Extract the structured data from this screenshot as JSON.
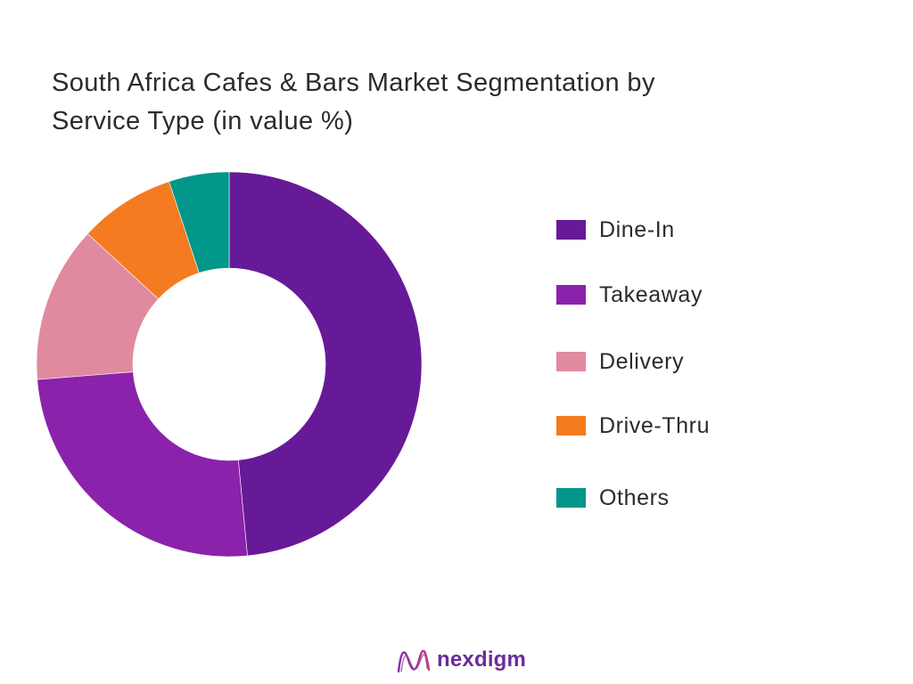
{
  "title_lines": [
    "South Africa Cafes & Bars Market Segmentation by",
    "Service Type (in value %)"
  ],
  "chart_data": {
    "type": "pie",
    "subtype": "donut",
    "title": "South Africa Cafes & Bars Market Segmentation by Service Type (in value %)",
    "categories": [
      "Dine-In",
      "Takeaway",
      "Delivery",
      "Drive-Thru",
      "Others"
    ],
    "values": [
      48,
      25,
      13,
      8,
      5
    ],
    "colors": [
      "#671a97",
      "#8b22ab",
      "#e08aa0",
      "#f47b20",
      "#00968a"
    ],
    "start_angle_deg": 0,
    "direction": "clockwise",
    "legend_position": "right",
    "data_labels": false
  },
  "brand": {
    "name": "nexdigm",
    "mark_icon": "nexdigm-logo-icon",
    "color": "#6a2c9b"
  }
}
